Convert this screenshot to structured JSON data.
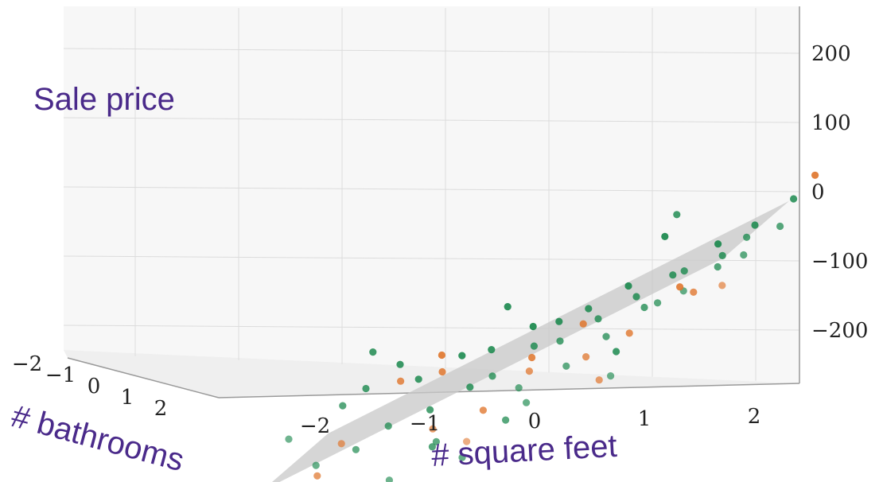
{
  "chart_data": {
    "type": "scatter",
    "title": "",
    "zlabel": "Sale price",
    "xlabel": "# square feet",
    "ylabel": "# bathrooms",
    "x_ticks": [
      "-2",
      "-1",
      "0",
      "1",
      "2"
    ],
    "y_ticks": [
      "-2",
      "-1",
      "0",
      "1",
      "2"
    ],
    "z_ticks": [
      "200",
      "100",
      "0",
      "-100",
      "-200"
    ],
    "xlim": [
      -2.5,
      2.5
    ],
    "ylim": [
      -2.5,
      2.5
    ],
    "zlim": [
      -250,
      250
    ],
    "grid": true,
    "fitted_plane": {
      "intercept": 0,
      "slope_square_feet": 80,
      "slope_bathrooms": 15
    },
    "colors": {
      "above_plane": "#1e8a50",
      "below_plane": "#e0772f",
      "plane": "#c8c8c8",
      "label": "#4a2a8a"
    },
    "series": [
      {
        "points": [
          [
            -2.0,
            -1.5,
            -130
          ],
          [
            -1.8,
            -1.2,
            -170
          ],
          [
            -1.7,
            -0.3,
            -90
          ],
          [
            -1.6,
            0.4,
            -70
          ],
          [
            -1.5,
            -0.8,
            -150
          ],
          [
            -1.4,
            1.1,
            -40
          ],
          [
            -1.3,
            -0.2,
            -120
          ],
          [
            -1.2,
            0.9,
            -60
          ],
          [
            -1.1,
            -1.4,
            -190
          ],
          [
            -1.0,
            0.3,
            -100
          ],
          [
            -0.9,
            1.5,
            -30
          ],
          [
            -0.8,
            -0.6,
            -140
          ],
          [
            -0.7,
            0.7,
            -70
          ],
          [
            -0.6,
            1.3,
            -20
          ],
          [
            -0.5,
            -1.0,
            -160
          ],
          [
            -0.4,
            0.1,
            -50
          ],
          [
            -0.3,
            1.8,
            10
          ],
          [
            -0.2,
            -0.4,
            -110
          ],
          [
            -0.1,
            0.6,
            -10
          ],
          [
            0.0,
            1.4,
            20
          ],
          [
            0.1,
            -1.1,
            -80
          ],
          [
            0.2,
            0.2,
            0
          ],
          [
            0.3,
            1.2,
            40
          ],
          [
            0.4,
            -0.7,
            -30
          ],
          [
            0.5,
            0.5,
            30
          ],
          [
            0.6,
            1.6,
            70
          ],
          [
            0.7,
            -0.3,
            10
          ],
          [
            0.8,
            0.8,
            60
          ],
          [
            0.9,
            -1.3,
            -40
          ],
          [
            1.0,
            0.0,
            50
          ],
          [
            1.1,
            1.0,
            90
          ],
          [
            1.2,
            -0.5,
            60
          ],
          [
            1.3,
            0.4,
            100
          ],
          [
            1.4,
            1.7,
            130
          ],
          [
            1.5,
            -0.9,
            80
          ],
          [
            1.6,
            0.7,
            120
          ],
          [
            1.7,
            -0.2,
            110
          ],
          [
            1.8,
            1.3,
            160
          ],
          [
            1.9,
            0.2,
            150
          ],
          [
            2.0,
            -0.6,
            130
          ],
          [
            -1.6,
            0.8,
            -20
          ],
          [
            -0.9,
            -0.2,
            -150
          ],
          [
            0.0,
            -0.9,
            -60
          ],
          [
            0.6,
            0.9,
            -20
          ],
          [
            1.2,
            0.6,
            180
          ],
          [
            2.2,
            1.0,
            200
          ],
          [
            2.3,
            -0.4,
            170
          ],
          [
            -1.4,
            -1.8,
            -210
          ],
          [
            -0.5,
            1.6,
            40
          ],
          [
            0.9,
            1.8,
            140
          ]
        ]
      },
      {
        "points": [
          [
            -1.9,
            -0.5,
            -190
          ],
          [
            -1.6,
            -1.0,
            -140
          ],
          [
            -1.3,
            0.5,
            -60
          ],
          [
            -1.0,
            1.0,
            -50
          ],
          [
            -0.8,
            -0.8,
            -120
          ],
          [
            -0.5,
            0.2,
            -100
          ],
          [
            -0.2,
            1.1,
            -30
          ],
          [
            0.0,
            -0.3,
            -40
          ],
          [
            0.3,
            0.9,
            20
          ],
          [
            0.5,
            -0.2,
            -20
          ],
          [
            0.8,
            0.4,
            10
          ],
          [
            1.1,
            1.4,
            70
          ],
          [
            1.4,
            0.3,
            70
          ],
          [
            2.3,
            1.6,
            230
          ],
          [
            1.9,
            -1.2,
            90
          ],
          [
            -0.3,
            -2.0,
            -130
          ],
          [
            0.7,
            -0.7,
            -50
          ],
          [
            -1.1,
            1.6,
            -30
          ]
        ]
      }
    ]
  }
}
